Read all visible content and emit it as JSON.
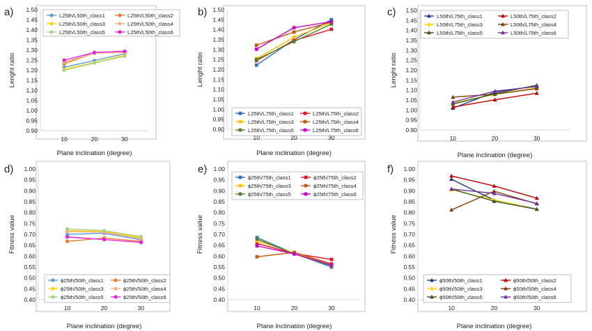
{
  "figure": {
    "panel_labels": [
      "a)",
      "b)",
      "c)",
      "d)",
      "e)",
      "f)"
    ]
  },
  "chart_data": [
    {
      "type": "line",
      "panel": "a)",
      "xlabel": "Plane inclination (degree)",
      "ylabel": "Lenght ratio",
      "x": [
        10,
        20,
        30
      ],
      "ylim": [
        0.9,
        1.5
      ],
      "yticks": [
        "0.90",
        "0.95",
        "1.00",
        "1.05",
        "1.10",
        "1.15",
        "1.20",
        "1.25",
        "1.30",
        "1.35",
        "1.40",
        "1.45",
        "1.50"
      ],
      "grid": false,
      "legend_position": "top",
      "marker": "circle",
      "series": [
        {
          "name": "L25th/L50th_class1",
          "color": "#5b9bd5",
          "values": [
            1.215,
            1.248,
            1.282
          ]
        },
        {
          "name": "L25th/L50th_class2",
          "color": "#ed7d31",
          "values": [
            1.232,
            1.286,
            1.29
          ]
        },
        {
          "name": "L25th/L50th_class3",
          "color": "#ffd600",
          "values": [
            1.205,
            1.238,
            1.275
          ]
        },
        {
          "name": "L25th/L50th_class4",
          "color": "#f4b183",
          "values": [
            1.24,
            1.285,
            1.288
          ]
        },
        {
          "name": "L25th/L50th_class5",
          "color": "#a9d18e",
          "values": [
            1.2,
            1.236,
            1.27
          ]
        },
        {
          "name": "L25th/L50th_class6",
          "color": "#e820e0",
          "values": [
            1.25,
            1.288,
            1.294
          ]
        }
      ]
    },
    {
      "type": "line",
      "panel": "b)",
      "xlabel": "Plane inclination (degree)",
      "ylabel": "Lenght ratio",
      "x": [
        10,
        20,
        30
      ],
      "ylim": [
        0.9,
        1.5
      ],
      "yticks": [
        "0.90",
        "0.95",
        "1.00",
        "1.05",
        "1.10",
        "1.15",
        "1.20",
        "1.25",
        "1.30",
        "1.35",
        "1.40",
        "1.45",
        "1.50"
      ],
      "grid": false,
      "legend_position": "bottom",
      "marker": "square",
      "series": [
        {
          "name": "L25th/L75th_class1",
          "color": "#2e75b6",
          "values": [
            1.222,
            1.35,
            1.45
          ]
        },
        {
          "name": "L25th/L75th_class2",
          "color": "#e8141b",
          "values": [
            1.245,
            1.345,
            1.402
          ]
        },
        {
          "name": "L25th/L75th_class3",
          "color": "#ffc000",
          "values": [
            1.255,
            1.362,
            1.435
          ]
        },
        {
          "name": "L25th/L75th_class4",
          "color": "#c55a11",
          "values": [
            1.322,
            1.388,
            1.438
          ]
        },
        {
          "name": "L25th/L75th_class5",
          "color": "#548235",
          "values": [
            1.25,
            1.34,
            1.428
          ]
        },
        {
          "name": "L25th/L75th_class6",
          "color": "#cc00cc",
          "values": [
            1.302,
            1.41,
            1.44
          ]
        }
      ]
    },
    {
      "type": "line",
      "panel": "c)",
      "xlabel": "Plane inclination (degree)",
      "ylabel": "Lenght ratio",
      "x": [
        10,
        20,
        30
      ],
      "ylim": [
        0.9,
        1.5
      ],
      "yticks": [
        "0.90",
        "0.95",
        "1.00",
        "1.05",
        "1.10",
        "1.15",
        "1.20",
        "1.25",
        "1.30",
        "1.35",
        "1.40",
        "1.45",
        "1.50"
      ],
      "grid": false,
      "legend_position": "top",
      "marker": "triangle",
      "series": [
        {
          "name": "L50th/L75th_class1",
          "color": "#1f3c88",
          "values": [
            1.01,
            1.09,
            1.122
          ]
        },
        {
          "name": "L50th/L75th_class2",
          "color": "#c00000",
          "values": [
            1.015,
            1.052,
            1.085
          ]
        },
        {
          "name": "L50th/L75th_class3",
          "color": "#ffd600",
          "values": [
            1.035,
            1.078,
            1.112
          ]
        },
        {
          "name": "L50th/L75th_class4",
          "color": "#843c0c",
          "values": [
            1.065,
            1.08,
            1.108
          ]
        },
        {
          "name": "L50th/L75th_class5",
          "color": "#385723",
          "values": [
            1.03,
            1.082,
            1.125
          ]
        },
        {
          "name": "L50th/L75th_class6",
          "color": "#7030a0",
          "values": [
            1.04,
            1.095,
            1.118
          ]
        }
      ]
    },
    {
      "type": "line",
      "panel": "d)",
      "xlabel": "Plane inclination (degree)",
      "ylabel": "Fitness value",
      "x": [
        10,
        20,
        30
      ],
      "ylim": [
        0.4,
        1.0
      ],
      "yticks": [
        "0.40",
        "0.45",
        "0.50",
        "0.55",
        "0.60",
        "0.65",
        "0.70",
        "0.75",
        "0.80",
        "0.85",
        "0.90",
        "0.95",
        "1.00"
      ],
      "grid": false,
      "legend_position": "bottom",
      "marker": "circle",
      "series": [
        {
          "name": "ϕ25th/50th_class1",
          "color": "#5b9bd5",
          "values": [
            0.7,
            0.705,
            0.675
          ]
        },
        {
          "name": "ϕ25th/50th_class2",
          "color": "#ed7d31",
          "values": [
            0.668,
            0.683,
            0.668
          ]
        },
        {
          "name": "ϕ25th/50th_class3",
          "color": "#ffd600",
          "values": [
            0.718,
            0.713,
            0.685
          ]
        },
        {
          "name": "ϕ25th/50th_class4",
          "color": "#f4b183",
          "values": [
            0.712,
            0.71,
            0.68
          ]
        },
        {
          "name": "ϕ25th/50th_class5",
          "color": "#a9d18e",
          "values": [
            0.725,
            0.717,
            0.69
          ]
        },
        {
          "name": "ϕ25th/50th_class6",
          "color": "#e820e0",
          "values": [
            0.688,
            0.676,
            0.663
          ]
        }
      ]
    },
    {
      "type": "line",
      "panel": "e)",
      "xlabel": "Plane inclination (degree)",
      "ylabel": "Fitness value",
      "x": [
        10,
        20,
        30
      ],
      "ylim": [
        0.4,
        1.0
      ],
      "yticks": [
        "0.40",
        "0.45",
        "0.50",
        "0.55",
        "0.60",
        "0.65",
        "0.70",
        "0.75",
        "0.80",
        "0.85",
        "0.90",
        "0.95",
        "1.00"
      ],
      "grid": false,
      "legend_position": "top",
      "marker": "square",
      "series": [
        {
          "name": "ϕ25th/75th_class1",
          "color": "#2e75b6",
          "values": [
            0.685,
            0.612,
            0.55
          ]
        },
        {
          "name": "ϕ25th/75th_class2",
          "color": "#e8141b",
          "values": [
            0.658,
            0.612,
            0.585
          ]
        },
        {
          "name": "ϕ25th/75th_class3",
          "color": "#ffc000",
          "values": [
            0.67,
            0.615,
            0.56
          ]
        },
        {
          "name": "ϕ25th/75th_class4",
          "color": "#c55a11",
          "values": [
            0.597,
            0.617,
            0.565
          ]
        },
        {
          "name": "ϕ25th/75th_class5",
          "color": "#548235",
          "values": [
            0.678,
            0.61,
            0.556
          ]
        },
        {
          "name": "ϕ25th/75th_class6",
          "color": "#cc00cc",
          "values": [
            0.647,
            0.61,
            0.56
          ]
        }
      ]
    },
    {
      "type": "line",
      "panel": "f)",
      "xlabel": "Plane inclination (degree)",
      "ylabel": "Fitness value",
      "x": [
        10,
        20,
        30
      ],
      "ylim": [
        0.4,
        1.0
      ],
      "yticks": [
        "0.40",
        "0.45",
        "0.50",
        "0.55",
        "0.60",
        "0.65",
        "0.70",
        "0.75",
        "0.80",
        "0.85",
        "0.90",
        "0.95",
        "1.00"
      ],
      "grid": false,
      "legend_position": "bottom",
      "marker": "triangle",
      "series": [
        {
          "name": "ϕ50th/50th_class1",
          "color": "#1f3c88",
          "values": [
            0.953,
            0.857,
            0.816
          ]
        },
        {
          "name": "ϕ50th/50th_class2",
          "color": "#c00000",
          "values": [
            0.968,
            0.922,
            0.866
          ]
        },
        {
          "name": "ϕ50th/50th_class3",
          "color": "#ffd600",
          "values": [
            0.905,
            0.858,
            0.815
          ]
        },
        {
          "name": "ϕ50th/50th_class4",
          "color": "#843c0c",
          "values": [
            0.812,
            0.898,
            0.84
          ]
        },
        {
          "name": "ϕ50th/50th_class5",
          "color": "#385723",
          "values": [
            0.908,
            0.852,
            0.815
          ]
        },
        {
          "name": "ϕ50th/50th_class6",
          "color": "#7030a0",
          "values": [
            0.908,
            0.888,
            0.842
          ]
        }
      ]
    }
  ]
}
